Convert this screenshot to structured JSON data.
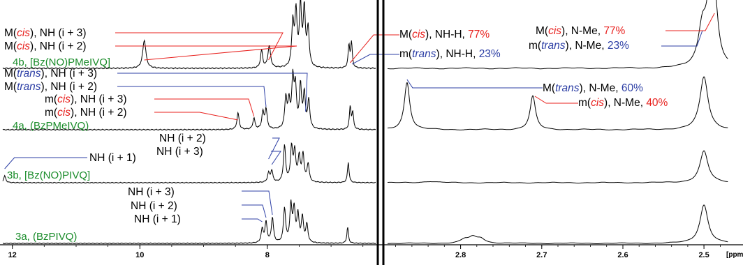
{
  "chart_data": {
    "type": "line",
    "x_unit": "[ppm]",
    "colors": {
      "spectrum": "#000000",
      "cis": "#e8211e",
      "trans": "#2d3fa5",
      "sample": "#1a8c2a",
      "neutral": "#000000"
    },
    "panels": [
      {
        "name": "left",
        "xlim": [
          12.15,
          6.3
        ],
        "ticks": [
          "12",
          "10",
          "8"
        ],
        "tick_values": [
          12,
          10,
          8
        ]
      },
      {
        "name": "right",
        "xlim": [
          2.89,
          2.47
        ],
        "ticks": [
          "2.8",
          "2.7",
          "2.6",
          "2.5"
        ],
        "tick_values": [
          2.8,
          2.7,
          2.6,
          2.5
        ]
      }
    ],
    "traces": [
      {
        "sample": "4b, [Bz(NO)PMeIVQ]",
        "left_peaks": [
          [
            9.93,
            0.45,
            0.03
          ],
          [
            8.09,
            0.28,
            0.02
          ],
          [
            7.97,
            0.35,
            0.025
          ],
          [
            7.6,
            0.7,
            0.02
          ],
          [
            7.55,
            0.85,
            0.02
          ],
          [
            7.48,
            0.95,
            0.02
          ],
          [
            7.42,
            0.9,
            0.02
          ],
          [
            7.36,
            0.6,
            0.02
          ],
          [
            6.72,
            0.35,
            0.015
          ],
          [
            6.68,
            0.4,
            0.015
          ]
        ],
        "right_peaks": [
          [
            2.502,
            0.6,
            0.006
          ],
          [
            2.493,
            0.85,
            0.005
          ],
          [
            2.487,
            0.95,
            0.005
          ]
        ]
      },
      {
        "sample": "4a, (BzPMeIVQ)",
        "left_peaks": [
          [
            8.46,
            0.3,
            0.02
          ],
          [
            8.21,
            0.2,
            0.02
          ],
          [
            8.07,
            0.3,
            0.02
          ],
          [
            8.02,
            0.35,
            0.02
          ],
          [
            7.71,
            0.55,
            0.02
          ],
          [
            7.66,
            0.45,
            0.02
          ],
          [
            7.6,
            0.85,
            0.02
          ],
          [
            7.56,
            0.7,
            0.02
          ],
          [
            7.48,
            0.75,
            0.02
          ],
          [
            7.42,
            0.6,
            0.02
          ],
          [
            7.35,
            0.5,
            0.02
          ],
          [
            6.7,
            0.4,
            0.015
          ],
          [
            6.66,
            0.3,
            0.015
          ]
        ],
        "right_peaks": [
          [
            2.866,
            0.85,
            0.004
          ],
          [
            2.711,
            0.6,
            0.004
          ],
          [
            2.5,
            0.95,
            0.006
          ]
        ]
      },
      {
        "sample": "3b, [Bz(NO)PIVQ]",
        "left_peaks": [
          [
            12.12,
            0.15,
            0.02
          ],
          [
            7.98,
            0.2,
            0.02
          ],
          [
            7.93,
            0.25,
            0.02
          ],
          [
            7.73,
            0.8,
            0.02
          ],
          [
            7.62,
            0.75,
            0.02
          ],
          [
            7.57,
            0.65,
            0.02
          ],
          [
            7.5,
            0.55,
            0.02
          ],
          [
            7.44,
            0.6,
            0.02
          ],
          [
            7.36,
            0.4,
            0.02
          ],
          [
            6.73,
            0.45,
            0.015
          ]
        ],
        "right_peaks": [
          [
            2.5,
            0.7,
            0.006
          ],
          [
            2.838,
            0.03,
            0.01
          ]
        ]
      },
      {
        "sample": "3a, (BzPIVQ)",
        "left_peaks": [
          [
            8.08,
            0.3,
            0.02
          ],
          [
            8.02,
            0.45,
            0.02
          ],
          [
            7.92,
            0.55,
            0.02
          ],
          [
            7.73,
            0.75,
            0.02
          ],
          [
            7.63,
            0.8,
            0.02
          ],
          [
            7.58,
            0.7,
            0.02
          ],
          [
            7.52,
            0.6,
            0.02
          ],
          [
            7.45,
            0.55,
            0.02
          ],
          [
            7.38,
            0.4,
            0.02
          ],
          [
            6.74,
            0.35,
            0.015
          ]
        ],
        "right_peaks": [
          [
            2.5,
            0.85,
            0.006
          ],
          [
            2.785,
            0.12,
            0.006
          ],
          [
            2.775,
            0.1,
            0.006
          ],
          [
            2.795,
            0.08,
            0.006
          ]
        ]
      }
    ],
    "labels": [
      {
        "text": [
          [
            "M(",
            "k"
          ],
          [
            "cis",
            "ci"
          ],
          [
            "), NH (i + 3)",
            "k"
          ]
        ],
        "color": "cis",
        "peak": 7.98,
        "panel": "left",
        "trace": 0
      },
      {
        "text": [
          [
            "M(",
            "k"
          ],
          [
            "cis",
            "ci"
          ],
          [
            "), NH (i + 2)",
            "k"
          ]
        ],
        "color": "cis",
        "peak": 9.93,
        "panel": "left",
        "trace": 0
      },
      {
        "text": [
          [
            "M(",
            "k"
          ],
          [
            "cis",
            "ci"
          ],
          [
            "), NH-H, ",
            "k"
          ],
          [
            "77%",
            "c"
          ]
        ],
        "color": "cis",
        "peak": 6.7,
        "panel": "left",
        "trace": 0
      },
      {
        "text": [
          [
            "m(",
            "k"
          ],
          [
            "trans",
            "ti"
          ],
          [
            "), NH-H, ",
            "k"
          ],
          [
            "23%",
            "t"
          ]
        ],
        "color": "trans",
        "peak": 6.67,
        "panel": "left",
        "trace": 0
      },
      {
        "text": [
          [
            "M(",
            "k"
          ],
          [
            "cis",
            "ci"
          ],
          [
            "), N-Me, ",
            "k"
          ],
          [
            "77%",
            "c"
          ]
        ],
        "color": "cis",
        "peak": 2.487,
        "panel": "right",
        "trace": 0
      },
      {
        "text": [
          [
            "m(",
            "k"
          ],
          [
            "trans",
            "ti"
          ],
          [
            "), N-Me, ",
            "k"
          ],
          [
            "23%",
            "t"
          ]
        ],
        "color": "trans",
        "peak": 2.502,
        "panel": "right",
        "trace": 0
      },
      {
        "text": [
          [
            "M(",
            "k"
          ],
          [
            "trans",
            "ti"
          ],
          [
            "), NH (i + 3)",
            "k"
          ]
        ],
        "color": "trans",
        "peak": 7.4,
        "panel": "left",
        "trace": 1
      },
      {
        "text": [
          [
            "M(",
            "k"
          ],
          [
            "trans",
            "ti"
          ],
          [
            "), NH (i + 2)",
            "k"
          ]
        ],
        "color": "trans",
        "peak": 8.02,
        "panel": "left",
        "trace": 1
      },
      {
        "text": [
          [
            "m(",
            "k"
          ],
          [
            "cis",
            "ci"
          ],
          [
            "), NH (i + 3)",
            "k"
          ]
        ],
        "color": "cis",
        "peak": 8.21,
        "panel": "left",
        "trace": 1
      },
      {
        "text": [
          [
            "m(",
            "k"
          ],
          [
            "cis",
            "ci"
          ],
          [
            "), NH (i + 2)",
            "k"
          ]
        ],
        "color": "cis",
        "peak": 8.46,
        "panel": "left",
        "trace": 1
      },
      {
        "text": [
          [
            "M(",
            "k"
          ],
          [
            "trans",
            "ti"
          ],
          [
            "), N-Me, ",
            "k"
          ],
          [
            "60%",
            "t"
          ]
        ],
        "color": "trans",
        "peak": 2.866,
        "panel": "right",
        "trace": 1
      },
      {
        "text": [
          [
            "m(",
            "k"
          ],
          [
            "cis",
            "ci"
          ],
          [
            "), N-Me, ",
            "k"
          ],
          [
            "40%",
            "c"
          ]
        ],
        "color": "cis",
        "peak": 2.711,
        "panel": "right",
        "trace": 1
      },
      {
        "text": [
          [
            "NH (i + 2)",
            "k"
          ]
        ],
        "color": "trans",
        "peak": 7.98,
        "panel": "left",
        "trace": 2
      },
      {
        "text": [
          [
            "NH (i + 3)",
            "k"
          ]
        ],
        "color": "trans",
        "peak": 7.93,
        "panel": "left",
        "trace": 2
      },
      {
        "text": [
          [
            "NH (i + 1)",
            "k"
          ]
        ],
        "color": "trans",
        "peak": 12.12,
        "panel": "left",
        "trace": 2
      },
      {
        "text": [
          [
            "NH (i + 3)",
            "k"
          ]
        ],
        "color": "trans",
        "peak": 7.92,
        "panel": "left",
        "trace": 3
      },
      {
        "text": [
          [
            "NH (i + 2)",
            "k"
          ]
        ],
        "color": "trans",
        "peak": 8.02,
        "panel": "left",
        "trace": 3
      },
      {
        "text": [
          [
            "NH (i + 1)",
            "k"
          ]
        ],
        "color": "trans",
        "peak": 8.08,
        "panel": "left",
        "trace": 3
      }
    ]
  }
}
